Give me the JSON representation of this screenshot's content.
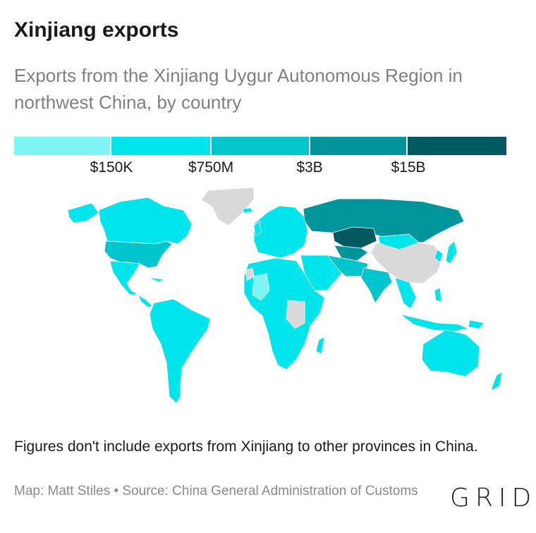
{
  "title": "Xinjiang exports",
  "subtitle": "Exports from the Xinjiang Uygur Autonomous Region in northwest China, by country",
  "legend": {
    "colors": [
      "#7ef5f5",
      "#00e5eb",
      "#00c5cc",
      "#00959b",
      "#005a60"
    ],
    "ticks": [
      "$150K",
      "$750M",
      "$3B",
      "$15B"
    ]
  },
  "map_colors": {
    "no_data": "#d9d9d9",
    "border": "#ffffff"
  },
  "note": "Figures don't include exports from Xinjiang to other provinces in China.",
  "credit": "Map: Matt Stiles • Source: China General Administration of Customs",
  "logo": "GRID"
}
